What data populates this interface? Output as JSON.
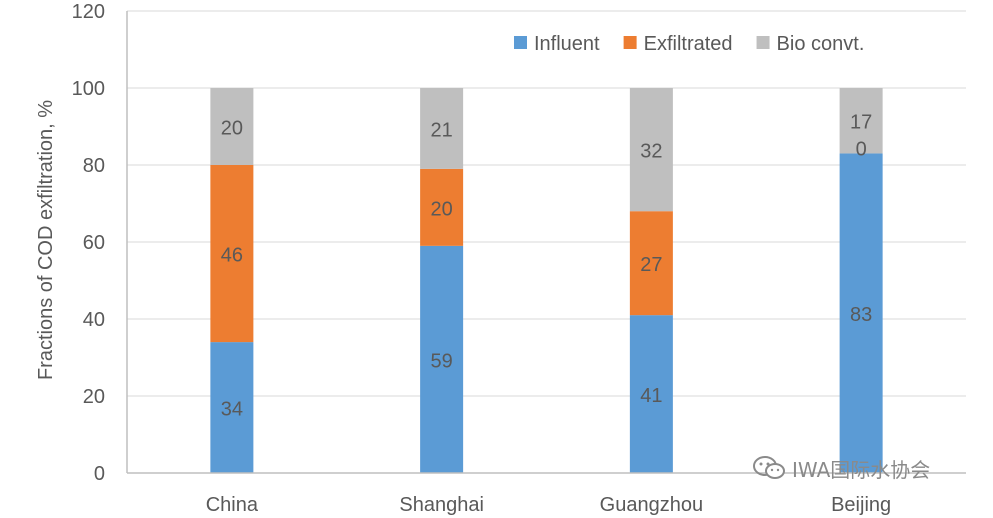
{
  "chart_data": {
    "type": "bar",
    "stacked": true,
    "categories": [
      "China",
      "Shanghai",
      "Guangzhou",
      "Beijing"
    ],
    "series": [
      {
        "name": "Influent",
        "values": [
          34,
          59,
          41,
          83
        ],
        "color": "#5b9bd5"
      },
      {
        "name": "Exfiltrated",
        "values": [
          46,
          20,
          27,
          0
        ],
        "color": "#ed7d31"
      },
      {
        "name": "Bio convt.",
        "values": [
          20,
          21,
          32,
          17
        ],
        "color": "#bfbfbf"
      }
    ],
    "title": "",
    "xlabel": "",
    "ylabel": "Fractions of COD exfiltration, %",
    "ylim": [
      0,
      120
    ],
    "yticks": [
      0,
      20,
      40,
      60,
      80,
      100,
      120
    ],
    "grid": true,
    "legend": "top-right",
    "label_color": "#595959",
    "axis_color": "#bfbfbf",
    "grid_color": "#d9d9d9"
  },
  "watermark": {
    "text": "IWA国际水协会",
    "icon": "wechat-icon"
  }
}
